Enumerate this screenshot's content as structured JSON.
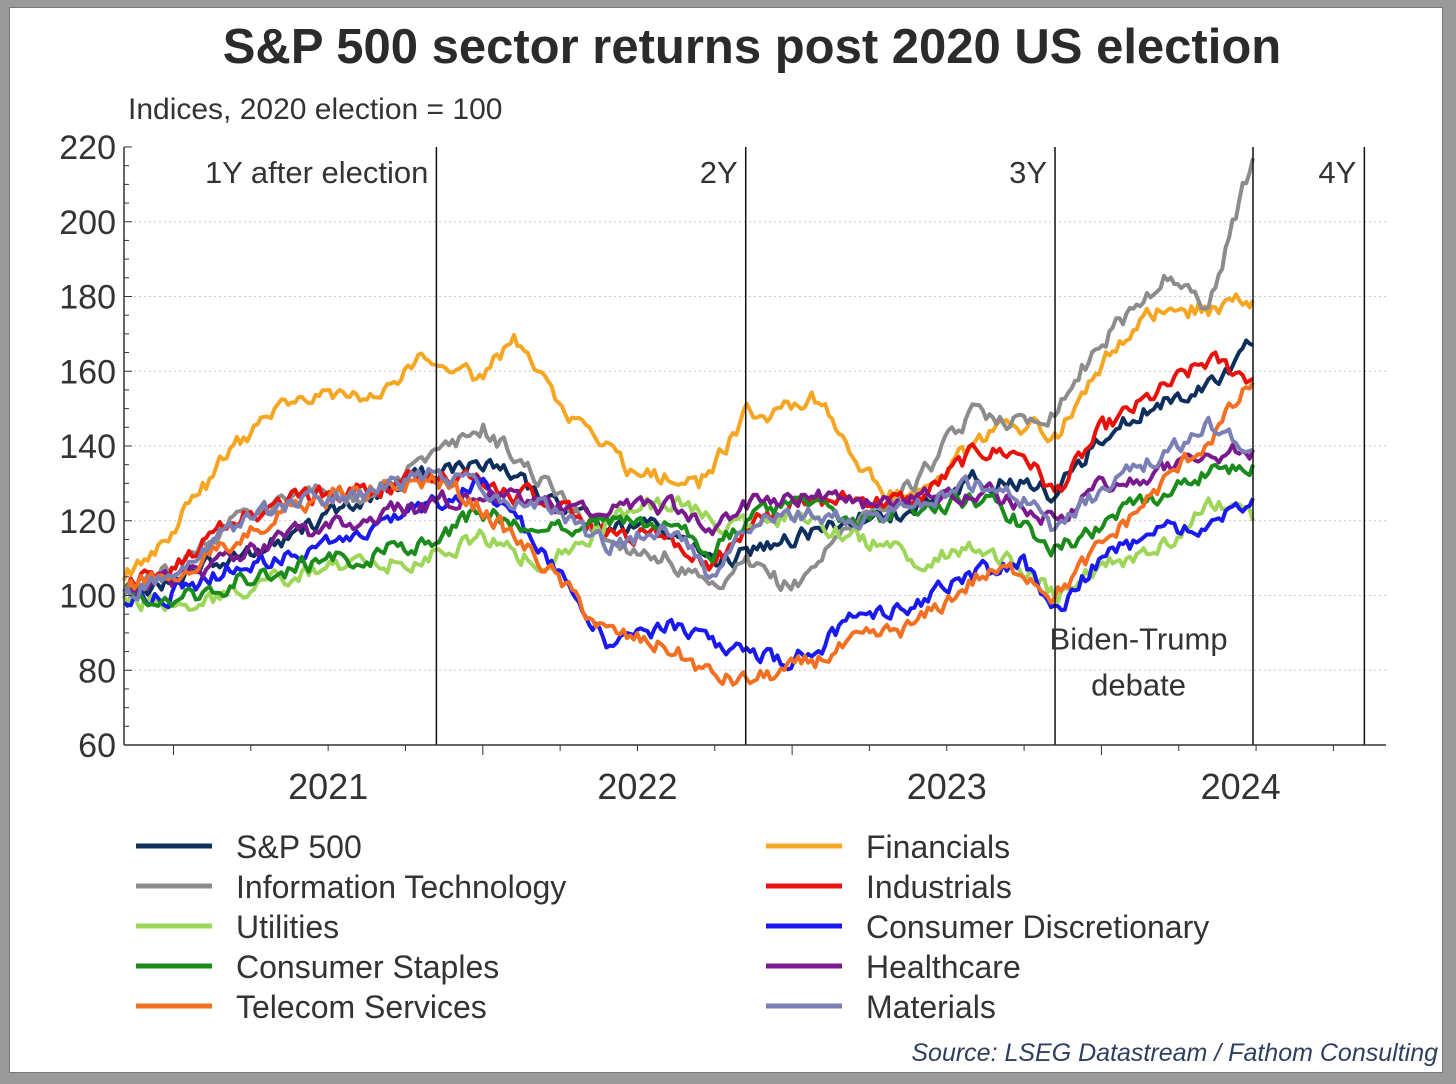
{
  "chart_data": {
    "type": "line",
    "title": "S&P 500 sector returns post 2020 US election",
    "subtitle": "Indices, 2020 election = 100",
    "ylim": [
      60,
      220
    ],
    "y_ticks": [
      "220",
      "200",
      "180",
      "160",
      "140",
      "120",
      "100",
      "80",
      "60"
    ],
    "y_tick_values": [
      220,
      200,
      180,
      160,
      140,
      120,
      100,
      80,
      60
    ],
    "xlim": [
      2020.84,
      2024.92
    ],
    "x_tick_labels": [
      "2021",
      "2022",
      "2023",
      "2024"
    ],
    "x_tick_values": [
      2021.5,
      2022.5,
      2023.5,
      2024.45
    ],
    "grid": "horizontal dotted",
    "vlines": [
      {
        "x": 2021.85,
        "label": "1Y after election",
        "label_side": "left"
      },
      {
        "x": 2022.85,
        "label": "2Y",
        "label_side": "left"
      },
      {
        "x": 2023.85,
        "label": "3Y",
        "label_side": "left"
      },
      {
        "x": 2024.49,
        "label": "",
        "label_side": "left"
      },
      {
        "x": 2024.85,
        "label": "4Y",
        "label_side": "left"
      }
    ],
    "annotations": [
      {
        "line1": "Biden-Trump",
        "line2": "debate",
        "x": 2024.12,
        "y": 84
      }
    ],
    "legend_position": "bottom, two columns",
    "series": [
      {
        "name": "S&P 500",
        "color": "#0d2f5e",
        "x": [
          2020.84,
          2021.0,
          2021.2,
          2021.4,
          2021.6,
          2021.85,
          2022.0,
          2022.2,
          2022.4,
          2022.6,
          2022.75,
          2022.85,
          2023.0,
          2023.2,
          2023.4,
          2023.6,
          2023.75,
          2023.85,
          2024.0,
          2024.2,
          2024.35,
          2024.49
        ],
        "y": [
          100,
          105,
          111,
          116,
          126,
          133,
          136,
          126,
          118,
          118,
          108,
          112,
          115,
          120,
          123,
          131,
          130,
          127,
          142,
          152,
          157,
          167
        ]
      },
      {
        "name": "Financials",
        "color": "#f5a623",
        "x": [
          2020.84,
          2021.0,
          2021.2,
          2021.4,
          2021.6,
          2021.85,
          2022.0,
          2022.1,
          2022.3,
          2022.5,
          2022.7,
          2022.85,
          2023.0,
          2023.1,
          2023.3,
          2023.5,
          2023.7,
          2023.85,
          2024.0,
          2024.2,
          2024.35,
          2024.49
        ],
        "y": [
          104,
          118,
          140,
          154,
          153,
          165,
          158,
          168,
          145,
          132,
          130,
          148,
          150,
          153,
          125,
          134,
          148,
          142,
          162,
          178,
          176,
          179
        ]
      },
      {
        "name": "Information Technology",
        "color": "#8c8c8c",
        "x": [
          2020.84,
          2021.0,
          2021.2,
          2021.4,
          2021.6,
          2021.85,
          2022.0,
          2022.2,
          2022.4,
          2022.6,
          2022.75,
          2022.85,
          2023.0,
          2023.2,
          2023.4,
          2023.6,
          2023.75,
          2023.85,
          2024.0,
          2024.2,
          2024.35,
          2024.49
        ],
        "y": [
          100,
          108,
          120,
          128,
          127,
          137,
          145,
          130,
          115,
          110,
          100,
          108,
          102,
          120,
          130,
          150,
          146,
          150,
          168,
          185,
          178,
          217
        ]
      },
      {
        "name": "Industrials",
        "color": "#e8120c",
        "x": [
          2020.84,
          2021.0,
          2021.2,
          2021.4,
          2021.6,
          2021.85,
          2022.0,
          2022.2,
          2022.4,
          2022.6,
          2022.75,
          2022.85,
          2023.0,
          2023.2,
          2023.4,
          2023.6,
          2023.75,
          2023.85,
          2024.0,
          2024.2,
          2024.35,
          2024.49
        ],
        "y": [
          102,
          108,
          120,
          126,
          129,
          131,
          130,
          125,
          117,
          116,
          108,
          118,
          124,
          126,
          125,
          139,
          138,
          127,
          144,
          155,
          163,
          158
        ]
      },
      {
        "name": "Utilities",
        "color": "#9ed65a",
        "x": [
          2020.84,
          2021.0,
          2021.2,
          2021.4,
          2021.6,
          2021.85,
          2022.0,
          2022.2,
          2022.4,
          2022.6,
          2022.75,
          2022.85,
          2023.0,
          2023.2,
          2023.4,
          2023.6,
          2023.75,
          2023.85,
          2024.0,
          2024.2,
          2024.35,
          2024.49
        ],
        "y": [
          100,
          97,
          100,
          106,
          108,
          111,
          115,
          108,
          120,
          125,
          121,
          118,
          122,
          115,
          110,
          112,
          108,
          100,
          108,
          113,
          126,
          120
        ]
      },
      {
        "name": "Consumer Discretionary",
        "color": "#1a1aee",
        "x": [
          2020.84,
          2021.0,
          2021.2,
          2021.4,
          2021.6,
          2021.85,
          2022.0,
          2022.2,
          2022.4,
          2022.6,
          2022.75,
          2022.85,
          2023.0,
          2023.2,
          2023.4,
          2023.6,
          2023.75,
          2023.85,
          2024.0,
          2024.2,
          2024.35,
          2024.49
        ],
        "y": [
          98,
          101,
          108,
          112,
          116,
          125,
          130,
          112,
          88,
          92,
          86,
          86,
          82,
          93,
          98,
          106,
          109,
          96,
          110,
          117,
          120,
          126
        ]
      },
      {
        "name": "Consumer Staples",
        "color": "#1b8c1b",
        "x": [
          2020.84,
          2021.0,
          2021.2,
          2021.4,
          2021.6,
          2021.85,
          2022.0,
          2022.2,
          2022.4,
          2022.6,
          2022.75,
          2022.85,
          2023.0,
          2023.2,
          2023.4,
          2023.6,
          2023.75,
          2023.85,
          2024.0,
          2024.2,
          2024.35,
          2024.49
        ],
        "y": [
          101,
          98,
          104,
          108,
          110,
          116,
          122,
          118,
          121,
          118,
          112,
          120,
          124,
          120,
          122,
          126,
          119,
          113,
          119,
          128,
          133,
          135
        ]
      },
      {
        "name": "Healthcare",
        "color": "#7a1a8e",
        "x": [
          2020.84,
          2021.0,
          2021.2,
          2021.4,
          2021.6,
          2021.85,
          2022.0,
          2022.2,
          2022.4,
          2022.6,
          2022.75,
          2022.85,
          2023.0,
          2023.2,
          2023.4,
          2023.6,
          2023.75,
          2023.85,
          2024.0,
          2024.2,
          2024.35,
          2024.49
        ],
        "y": [
          101,
          104,
          110,
          116,
          120,
          125,
          127,
          124,
          122,
          124,
          118,
          124,
          127,
          125,
          126,
          128,
          124,
          119,
          129,
          134,
          138,
          139
        ]
      },
      {
        "name": "Telecom Services",
        "color": "#f36f21",
        "x": [
          2020.84,
          2021.0,
          2021.2,
          2021.4,
          2021.6,
          2021.85,
          2022.0,
          2022.2,
          2022.4,
          2022.6,
          2022.75,
          2022.85,
          2023.0,
          2023.2,
          2023.4,
          2023.6,
          2023.75,
          2023.85,
          2024.0,
          2024.2,
          2024.35,
          2024.49
        ],
        "y": [
          102,
          106,
          115,
          124,
          128,
          131,
          123,
          108,
          90,
          86,
          78,
          77,
          80,
          87,
          92,
          105,
          107,
          100,
          113,
          130,
          142,
          157
        ]
      },
      {
        "name": "Materials",
        "color": "#7a7fb5",
        "x": [
          2020.84,
          2021.0,
          2021.2,
          2021.4,
          2021.6,
          2021.85,
          2022.0,
          2022.2,
          2022.4,
          2022.6,
          2022.75,
          2022.85,
          2023.0,
          2023.2,
          2023.4,
          2023.6,
          2023.75,
          2023.85,
          2024.0,
          2024.2,
          2024.35,
          2024.49
        ],
        "y": [
          101,
          106,
          119,
          125,
          127,
          132,
          128,
          124,
          113,
          118,
          104,
          120,
          122,
          120,
          124,
          130,
          126,
          118,
          128,
          138,
          146,
          139
        ]
      }
    ],
    "source": "Source: LSEG Datastream / Fathom Consulting"
  }
}
